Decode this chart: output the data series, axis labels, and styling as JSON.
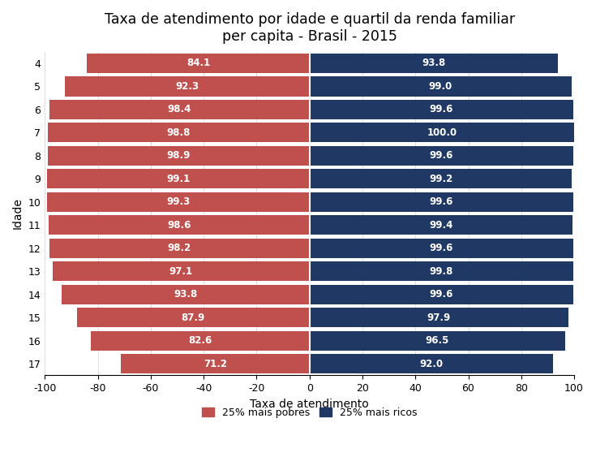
{
  "title": "Taxa de atendimento por idade e quartil da renda familiar\nper capita - Brasil - 2015",
  "xlabel": "Taxa de atendimento",
  "ylabel": "Idade",
  "ages": [
    4,
    5,
    6,
    7,
    8,
    9,
    10,
    11,
    12,
    13,
    14,
    15,
    16,
    17
  ],
  "poor_values": [
    84.1,
    92.3,
    98.4,
    98.8,
    98.9,
    99.1,
    99.3,
    98.6,
    98.2,
    97.1,
    93.8,
    87.9,
    82.6,
    71.2
  ],
  "rich_values": [
    93.8,
    99.0,
    99.6,
    100.0,
    99.6,
    99.2,
    99.6,
    99.4,
    99.6,
    99.8,
    99.6,
    97.9,
    96.5,
    92.0
  ],
  "poor_color": "#C0504D",
  "rich_color": "#1F3864",
  "xlim": [
    -100,
    100
  ],
  "xticks": [
    -100,
    -80,
    -60,
    -40,
    -20,
    0,
    20,
    40,
    60,
    80,
    100
  ],
  "xtick_labels": [
    "-100",
    "-80",
    "-60",
    "-40",
    "-20",
    "0",
    "20",
    "40",
    "60",
    "80",
    "100"
  ],
  "bar_height": 0.85,
  "legend_poor": "25% mais pobres",
  "legend_rich": "25% mais ricos",
  "title_fontsize": 12.5,
  "label_fontsize": 10,
  "tick_fontsize": 9,
  "background_color": "#FFFFFF",
  "value_fontsize": 8.5
}
